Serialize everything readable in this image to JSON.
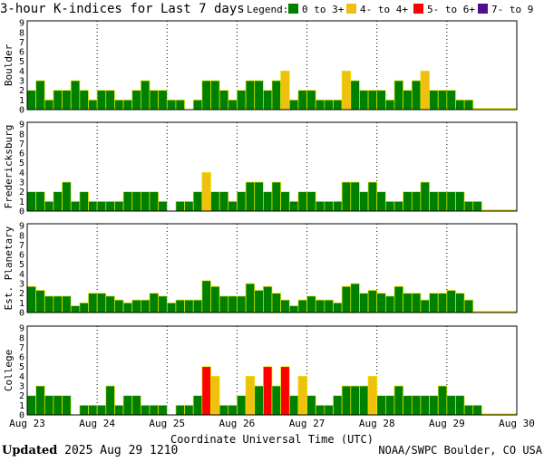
{
  "footer": {
    "updated_label": "Updated",
    "updated_value": "2025 Aug 29 1210",
    "source": "NOAA/SWPC Boulder, CO USA"
  },
  "chart_data": {
    "type": "bar",
    "title": "3-hour K-indices for Last 7 days",
    "xlabel": "Coordinate Universal Time (UTC)",
    "legend_title": "Legend:",
    "legend": [
      {
        "label": "0 to 3+",
        "color": "#008000"
      },
      {
        "label": "4- to 4+",
        "color": "#f0c010"
      },
      {
        "label": "5- to 6+",
        "color": "#ff0000"
      },
      {
        "label": "7- to 9",
        "color": "#50108c"
      }
    ],
    "x_tick_labels": [
      "Aug 23",
      "Aug 24",
      "Aug 25",
      "Aug 26",
      "Aug 27",
      "Aug 28",
      "Aug 29",
      "Aug 30"
    ],
    "y_tick_labels": [
      "0",
      "1",
      "2",
      "3",
      "4",
      "5",
      "6",
      "7",
      "8",
      "9"
    ],
    "ylim": [
      0,
      9
    ],
    "grid": true,
    "panels": [
      {
        "name": "Boulder",
        "values": [
          2,
          3,
          1,
          2,
          2,
          3,
          2,
          1,
          2,
          2,
          1,
          1,
          2,
          3,
          2,
          2,
          1,
          1,
          0,
          1,
          3,
          3,
          2,
          1,
          2,
          3,
          3,
          2,
          3,
          4,
          1,
          2,
          2,
          1,
          1,
          1,
          4,
          3,
          2,
          2,
          2,
          1,
          3,
          2,
          3,
          4,
          2,
          2,
          2,
          1,
          1
        ]
      },
      {
        "name": "Fredericksburg",
        "values": [
          2,
          2,
          1,
          2,
          3,
          1,
          2,
          1,
          1,
          1,
          1,
          2,
          2,
          2,
          2,
          1,
          0,
          1,
          1,
          2,
          4,
          2,
          2,
          1,
          2,
          3,
          3,
          2,
          3,
          2,
          1,
          2,
          2,
          1,
          1,
          1,
          3,
          3,
          2,
          3,
          2,
          1,
          1,
          2,
          2,
          3,
          2,
          2,
          2,
          2,
          1,
          1
        ]
      },
      {
        "name": "Est. Planetary",
        "values": [
          2.7,
          2.3,
          1.7,
          1.7,
          1.7,
          0.7,
          1.0,
          2.0,
          2.0,
          1.7,
          1.3,
          1.0,
          1.3,
          1.3,
          2.0,
          1.7,
          1.0,
          1.3,
          1.3,
          1.3,
          3.3,
          2.7,
          1.7,
          1.7,
          1.7,
          3.0,
          2.3,
          2.7,
          2.0,
          1.3,
          0.7,
          1.3,
          1.7,
          1.3,
          1.3,
          1.0,
          2.7,
          3.0,
          2.0,
          2.3,
          2.0,
          1.7,
          2.7,
          2.0,
          2.0,
          1.3,
          2.0,
          2.0,
          2.3,
          2.0,
          1.3
        ]
      },
      {
        "name": "College",
        "values": [
          2,
          3,
          2,
          2,
          2,
          0,
          1,
          1,
          1,
          3,
          1,
          2,
          2,
          1,
          1,
          1,
          0,
          1,
          1,
          2,
          5,
          4,
          1,
          1,
          2,
          4,
          3,
          5,
          3,
          5,
          2,
          4,
          2,
          1,
          1,
          2,
          3,
          3,
          3,
          4,
          2,
          2,
          3,
          2,
          2,
          2,
          2,
          3,
          2,
          2,
          1,
          1
        ]
      }
    ]
  }
}
